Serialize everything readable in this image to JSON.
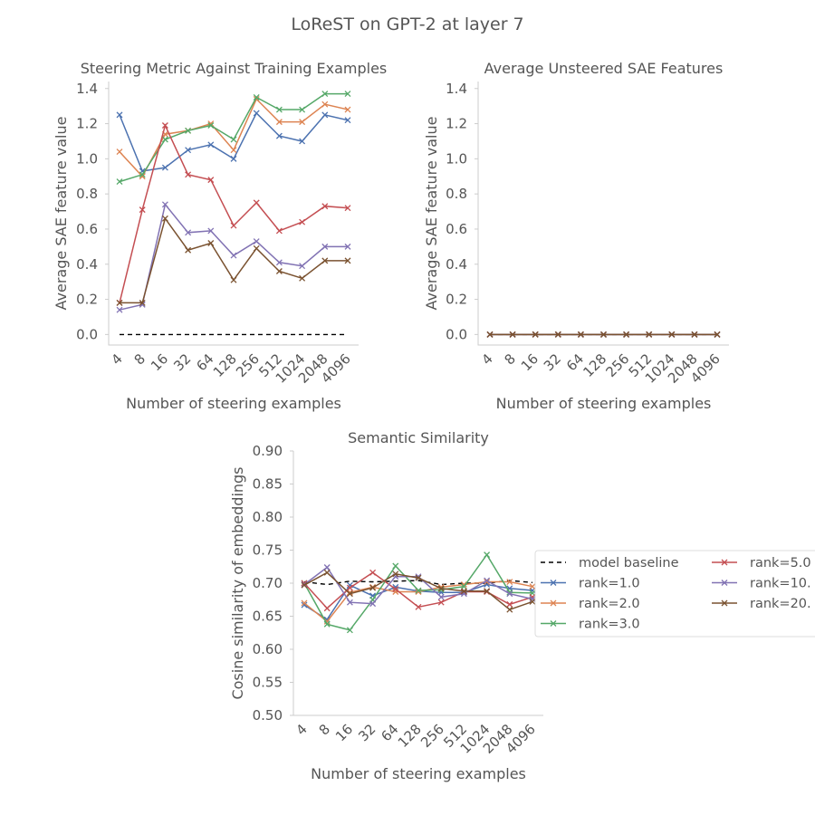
{
  "figure": {
    "title": "LoReST on GPT-2 at layer 7"
  },
  "chart_data": [
    {
      "type": "line",
      "title": "Steering Metric Against Training Examples",
      "xlabel": "Number of steering examples",
      "ylabel": "Average SAE feature value",
      "categories": [
        "4",
        "8",
        "16",
        "32",
        "64",
        "128",
        "256",
        "512",
        "1024",
        "2048",
        "4096"
      ],
      "ylim": [
        -0.06,
        1.44
      ],
      "yticks": [
        0.0,
        0.2,
        0.4,
        0.6,
        0.8,
        1.0,
        1.2,
        1.4
      ],
      "yticklabels": [
        "0.0",
        "0.2",
        "0.4",
        "0.6",
        "0.8",
        "1.0",
        "1.2",
        "1.4"
      ],
      "grid": false,
      "series": [
        {
          "name": "model baseline",
          "color": "#000000",
          "dashed": true,
          "marker": false,
          "values": [
            0,
            0,
            0,
            0,
            0,
            0,
            0,
            0,
            0,
            0,
            0
          ]
        },
        {
          "name": "rank=1.0",
          "color": "#4c72b0",
          "values": [
            1.25,
            0.93,
            0.95,
            1.05,
            1.08,
            1.0,
            1.26,
            1.13,
            1.1,
            1.25,
            1.22
          ]
        },
        {
          "name": "rank=2.0",
          "color": "#dd8452",
          "values": [
            1.04,
            0.9,
            1.14,
            1.16,
            1.2,
            1.05,
            1.34,
            1.21,
            1.21,
            1.31,
            1.28
          ]
        },
        {
          "name": "rank=3.0",
          "color": "#55a868",
          "values": [
            0.87,
            0.91,
            1.11,
            1.16,
            1.19,
            1.11,
            1.35,
            1.28,
            1.28,
            1.37,
            1.37
          ]
        },
        {
          "name": "rank=5.0",
          "color": "#c44e52",
          "values": [
            0.18,
            0.71,
            1.19,
            0.91,
            0.88,
            0.62,
            0.75,
            0.59,
            0.64,
            0.73,
            0.72
          ]
        },
        {
          "name": "rank=10.",
          "color": "#8172b3",
          "values": [
            0.14,
            0.17,
            0.74,
            0.58,
            0.59,
            0.45,
            0.53,
            0.41,
            0.39,
            0.5,
            0.5
          ]
        },
        {
          "name": "rank=20.",
          "color": "#7a5230",
          "values": [
            0.18,
            0.18,
            0.66,
            0.48,
            0.52,
            0.31,
            0.49,
            0.36,
            0.32,
            0.42,
            0.42
          ]
        }
      ]
    },
    {
      "type": "line",
      "title": "Average Unsteered SAE Features",
      "xlabel": "Number of steering examples",
      "ylabel": "Average SAE feature value",
      "categories": [
        "4",
        "8",
        "16",
        "32",
        "64",
        "128",
        "256",
        "512",
        "1024",
        "2048",
        "4096"
      ],
      "ylim": [
        -0.06,
        1.44
      ],
      "yticks": [
        0.0,
        0.2,
        0.4,
        0.6,
        0.8,
        1.0,
        1.2,
        1.4
      ],
      "yticklabels": [
        "0.0",
        "0.2",
        "0.4",
        "0.6",
        "0.8",
        "1.0",
        "1.2",
        "1.4"
      ],
      "grid": false,
      "series": [
        {
          "name": "model baseline",
          "color": "#000000",
          "dashed": true,
          "marker": false,
          "values": [
            0,
            0,
            0,
            0,
            0,
            0,
            0,
            0,
            0,
            0,
            0
          ]
        },
        {
          "name": "rank=1.0",
          "color": "#4c72b0",
          "values": [
            0,
            0,
            0,
            0,
            0,
            0,
            0,
            0,
            0,
            0,
            0
          ]
        },
        {
          "name": "rank=2.0",
          "color": "#dd8452",
          "values": [
            0,
            0,
            0,
            0,
            0,
            0,
            0,
            0,
            0,
            0,
            0
          ]
        },
        {
          "name": "rank=3.0",
          "color": "#55a868",
          "values": [
            0,
            0,
            0,
            0,
            0,
            0,
            0,
            0,
            0,
            0,
            0
          ]
        },
        {
          "name": "rank=5.0",
          "color": "#c44e52",
          "values": [
            0,
            0,
            0,
            0,
            0,
            0,
            0,
            0,
            0,
            0,
            0
          ]
        },
        {
          "name": "rank=10.",
          "color": "#8172b3",
          "values": [
            0,
            0,
            0,
            0,
            0,
            0,
            0,
            0,
            0,
            0,
            0
          ]
        },
        {
          "name": "rank=20.",
          "color": "#7a5230",
          "values": [
            0,
            0,
            0,
            0,
            0,
            0,
            0,
            0,
            0,
            0,
            0
          ]
        }
      ]
    },
    {
      "type": "line",
      "title": "Semantic Similarity",
      "xlabel": "Number of steering examples",
      "ylabel": "Cosine similarity of embeddings",
      "categories": [
        "4",
        "8",
        "16",
        "32",
        "64",
        "128",
        "256",
        "512",
        "1024",
        "2048",
        "4096"
      ],
      "ylim": [
        0.5,
        0.9
      ],
      "yticks": [
        0.5,
        0.55,
        0.6,
        0.65,
        0.7,
        0.75,
        0.8,
        0.85,
        0.9
      ],
      "yticklabels": [
        "0.50",
        "0.55",
        "0.60",
        "0.65",
        "0.70",
        "0.75",
        "0.80",
        "0.85",
        "0.90"
      ],
      "grid": false,
      "legend": "right",
      "series": [
        {
          "name": "model baseline",
          "color": "#000000",
          "dashed": true,
          "marker": false,
          "values": [
            0.702,
            0.698,
            0.703,
            0.702,
            0.703,
            0.704,
            0.698,
            0.7,
            0.7,
            0.704,
            0.701
          ]
        },
        {
          "name": "rank=1.0",
          "color": "#4c72b0",
          "values": [
            0.667,
            0.645,
            0.697,
            0.681,
            0.694,
            0.688,
            0.686,
            0.686,
            0.698,
            0.692,
            0.689
          ]
        },
        {
          "name": "rank=2.0",
          "color": "#dd8452",
          "values": [
            0.67,
            0.642,
            0.686,
            0.694,
            0.687,
            0.687,
            0.694,
            0.698,
            0.702,
            0.702,
            0.695
          ]
        },
        {
          "name": "rank=3.0",
          "color": "#55a868",
          "values": [
            0.7,
            0.638,
            0.629,
            0.675,
            0.726,
            0.689,
            0.69,
            0.695,
            0.743,
            0.686,
            0.685
          ]
        },
        {
          "name": "rank=5.0",
          "color": "#c44e52",
          "values": [
            0.7,
            0.662,
            0.693,
            0.716,
            0.691,
            0.664,
            0.671,
            0.687,
            0.687,
            0.668,
            0.679
          ]
        },
        {
          "name": "rank=10.",
          "color": "#8172b3",
          "values": [
            0.698,
            0.724,
            0.671,
            0.669,
            0.71,
            0.71,
            0.679,
            0.684,
            0.704,
            0.684,
            0.676
          ]
        },
        {
          "name": "rank=20.",
          "color": "#7a5230",
          "values": [
            0.697,
            0.716,
            0.684,
            0.693,
            0.714,
            0.708,
            0.692,
            0.688,
            0.688,
            0.66,
            0.672
          ]
        }
      ]
    }
  ]
}
